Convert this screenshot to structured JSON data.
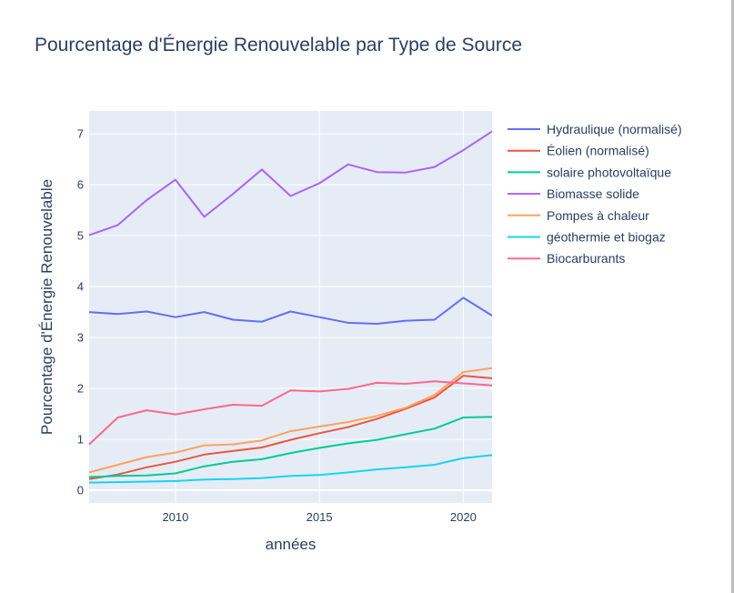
{
  "chart_data": {
    "type": "line",
    "title": "Pourcentage d'Énergie Renouvelable par Type de Source",
    "xlabel": "années",
    "ylabel": "Pourcentage d'Énergie Renouvelable",
    "xlim": [
      2007,
      2021
    ],
    "ylim": [
      -0.25,
      7.45
    ],
    "x_ticks": [
      2010,
      2015,
      2020
    ],
    "y_ticks": [
      0,
      1,
      2,
      3,
      4,
      5,
      6,
      7
    ],
    "grid": true,
    "legend_position": "right",
    "plot_background": "#e5ecf6",
    "x": [
      2007,
      2008,
      2009,
      2010,
      2011,
      2012,
      2013,
      2014,
      2015,
      2016,
      2017,
      2018,
      2019,
      2020,
      2021
    ],
    "series": [
      {
        "name": "Hydraulique (normalisé)",
        "color": "#636efa",
        "values": [
          3.5,
          3.46,
          3.51,
          3.4,
          3.5,
          3.35,
          3.31,
          3.51,
          3.4,
          3.29,
          3.27,
          3.33,
          3.35,
          3.78,
          3.43
        ]
      },
      {
        "name": "Éolien (normalisé)",
        "color": "#ef553b",
        "values": [
          0.22,
          0.31,
          0.45,
          0.56,
          0.7,
          0.77,
          0.84,
          0.99,
          1.12,
          1.24,
          1.4,
          1.6,
          1.82,
          2.25,
          2.2
        ]
      },
      {
        "name": "solaire photovoltaïque",
        "color": "#00cc96",
        "values": [
          0.26,
          0.28,
          0.29,
          0.33,
          0.47,
          0.56,
          0.61,
          0.73,
          0.83,
          0.92,
          0.99,
          1.1,
          1.21,
          1.43,
          1.44
        ]
      },
      {
        "name": "Biomasse solide",
        "color": "#ab63fa",
        "values": [
          5.01,
          5.21,
          5.7,
          6.1,
          5.37,
          5.82,
          6.3,
          5.78,
          6.03,
          6.4,
          6.25,
          6.24,
          6.35,
          6.68,
          7.05
        ]
      },
      {
        "name": "Pompes à chaleur",
        "color": "#ffa15a",
        "values": [
          0.35,
          0.5,
          0.65,
          0.74,
          0.88,
          0.9,
          0.98,
          1.16,
          1.25,
          1.34,
          1.46,
          1.62,
          1.87,
          2.32,
          2.4
        ]
      },
      {
        "name": "géothermie et biogaz",
        "color": "#19d3f3",
        "values": [
          0.15,
          0.16,
          0.17,
          0.18,
          0.21,
          0.22,
          0.24,
          0.28,
          0.3,
          0.35,
          0.41,
          0.45,
          0.5,
          0.63,
          0.69
        ]
      },
      {
        "name": "Biocarburants",
        "color": "#ff6692",
        "values": [
          0.9,
          1.43,
          1.57,
          1.49,
          1.59,
          1.68,
          1.66,
          1.96,
          1.94,
          1.99,
          2.11,
          2.09,
          2.14,
          2.1,
          2.06
        ]
      }
    ]
  }
}
